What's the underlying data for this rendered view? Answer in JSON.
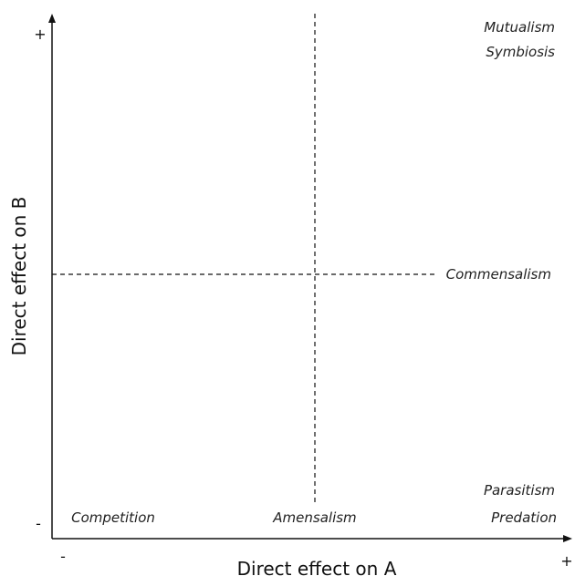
{
  "axes": {
    "x_title": "Direct effect on A",
    "y_title": "Direct effect on B",
    "x_min_sign": "-",
    "x_max_sign": "+",
    "y_min_sign": "-",
    "y_max_sign": "+"
  },
  "regions": {
    "top_right_line1": "Mutualism",
    "top_right_line2": "Symbiosis",
    "middle_right": "Commensalism",
    "bottom_left": "Competition",
    "bottom_middle": "Amensalism",
    "bottom_right_line1": "Parasitism",
    "bottom_right_line2": "Predation"
  },
  "colors": {
    "axis": "#111111",
    "dashed_line": "#111111",
    "text": "#222222"
  }
}
